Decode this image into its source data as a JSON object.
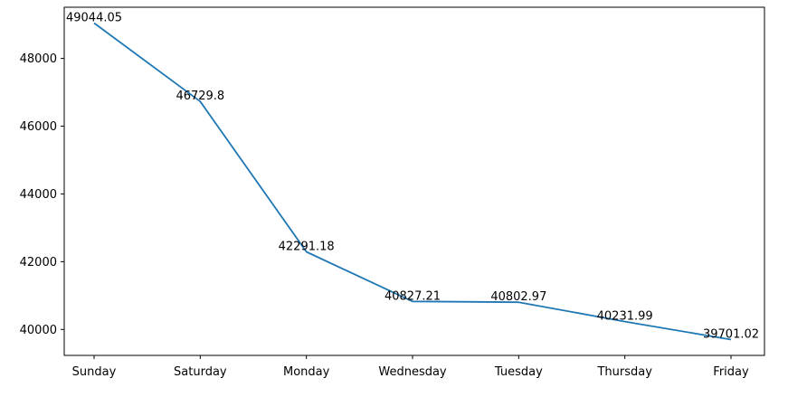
{
  "chart_data": {
    "type": "line",
    "categories": [
      "Sunday",
      "Saturday",
      "Monday",
      "Wednesday",
      "Tuesday",
      "Thursday",
      "Friday"
    ],
    "series": [
      {
        "values": [
          49044.05,
          46729.8,
          42291.18,
          40827.21,
          40802.97,
          40231.99,
          39701.02
        ],
        "data_labels": [
          "49044.05",
          "46729.8",
          "42291.18",
          "40827.21",
          "40802.97",
          "40231.99",
          "39701.02"
        ],
        "color": "#1f77b4"
      }
    ],
    "yticks": [
      40000,
      42000,
      44000,
      46000,
      48000
    ],
    "ytick_labels": [
      "40000",
      "42000",
      "44000",
      "46000",
      "48000"
    ],
    "ylim": [
      39234,
      49511
    ],
    "title": "",
    "xlabel": "",
    "ylabel": "",
    "grid": false,
    "legend": "none"
  }
}
